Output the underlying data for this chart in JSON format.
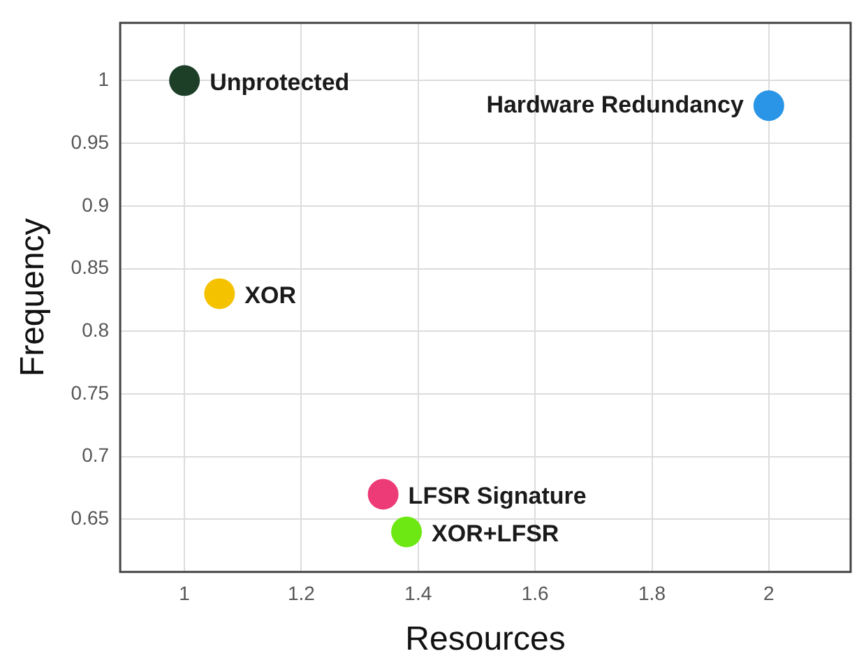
{
  "chart_data": {
    "type": "scatter",
    "xlabel": "Resources",
    "ylabel": "Frequency",
    "xlim": [
      0.89,
      2.14
    ],
    "xticks": [
      1,
      1.2,
      1.4,
      1.6,
      1.8,
      2
    ],
    "ylim": [
      0.608,
      1.046
    ],
    "yticks": [
      0.65,
      0.7,
      0.75,
      0.8,
      0.85,
      0.9,
      0.95,
      1
    ],
    "grid": true,
    "legend": false,
    "marker": "circle",
    "series": [
      {
        "name": "Unprotected",
        "color": "#1e3f27",
        "x": [
          1
        ],
        "values": [
          1
        ]
      },
      {
        "name": "Hardware Redundancy",
        "color": "#2a95e6",
        "x": [
          2
        ],
        "values": [
          0.98
        ]
      },
      {
        "name": "XOR",
        "color": "#f5c200",
        "x": [
          1.06
        ],
        "values": [
          0.83
        ]
      },
      {
        "name": "LFSR Signature",
        "color": "#ec3b76",
        "x": [
          1.34
        ],
        "values": [
          0.67
        ]
      },
      {
        "name": "XOR+LFSR",
        "color": "#6ee812",
        "x": [
          1.38
        ],
        "values": [
          0.64
        ]
      }
    ]
  }
}
